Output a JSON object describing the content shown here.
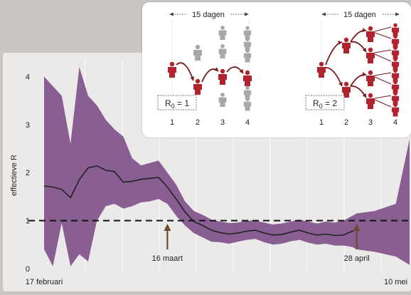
{
  "chart_data": {
    "type": "area",
    "ylabel": "effectieve R",
    "ylim": [
      0,
      4.2
    ],
    "yticks": [
      0,
      1,
      2,
      3,
      4
    ],
    "x_range": [
      "2020-02-17",
      "2020-05-10"
    ],
    "x_tick_labels": [
      {
        "date": "2020-02-17",
        "label": "17 februari"
      },
      {
        "date": "2020-05-10",
        "label": "10 mei"
      }
    ],
    "reference_line": {
      "y": 1,
      "style": "dashed"
    },
    "annotations": [
      {
        "date": "2020-03-16",
        "label": "16 maart"
      },
      {
        "date": "2020-04-28",
        "label": "28 april"
      }
    ],
    "series": [
      {
        "x": [
          "2020-02-17",
          "2020-02-19",
          "2020-02-21",
          "2020-02-23",
          "2020-02-25",
          "2020-02-27",
          "2020-02-29",
          "2020-03-02",
          "2020-03-04",
          "2020-03-06",
          "2020-03-08",
          "2020-03-10",
          "2020-03-12",
          "2020-03-14",
          "2020-03-16",
          "2020-03-18",
          "2020-03-20",
          "2020-03-22",
          "2020-03-24",
          "2020-03-26",
          "2020-03-28",
          "2020-03-30",
          "2020-04-01",
          "2020-04-03",
          "2020-04-05",
          "2020-04-07",
          "2020-04-09",
          "2020-04-11",
          "2020-04-13",
          "2020-04-15",
          "2020-04-17",
          "2020-04-19",
          "2020-04-21",
          "2020-04-23",
          "2020-04-25",
          "2020-04-27",
          "2020-04-28"
        ],
        "y": [
          1.72,
          1.7,
          1.65,
          1.48,
          1.85,
          2.1,
          2.14,
          2.05,
          2.02,
          1.8,
          1.82,
          1.86,
          1.88,
          1.9,
          1.7,
          1.45,
          1.18,
          0.98,
          0.9,
          0.8,
          0.75,
          0.72,
          0.74,
          0.78,
          0.8,
          0.74,
          0.7,
          0.71,
          0.76,
          0.8,
          0.74,
          0.7,
          0.72,
          0.69,
          0.7,
          0.78,
          0.83
        ],
        "lower": [
          0.4,
          0.05,
          0.95,
          0.05,
          0.3,
          0.15,
          1.0,
          1.3,
          1.35,
          1.25,
          1.3,
          1.38,
          1.4,
          1.45,
          1.35,
          1.1,
          0.9,
          0.74,
          0.65,
          0.56,
          0.55,
          0.52,
          0.56,
          0.6,
          0.62,
          0.55,
          0.5,
          0.52,
          0.57,
          0.6,
          0.54,
          0.5,
          0.52,
          0.48,
          0.48,
          0.45,
          0.4
        ],
        "upper": [
          4.0,
          3.8,
          3.6,
          2.6,
          4.2,
          3.6,
          3.4,
          3.1,
          2.9,
          2.75,
          2.3,
          2.15,
          2.2,
          2.25,
          2.0,
          1.75,
          1.4,
          1.2,
          1.12,
          1.02,
          0.98,
          0.95,
          0.96,
          1.0,
          1.0,
          0.96,
          0.92,
          0.94,
          0.98,
          1.02,
          0.98,
          0.94,
          0.98,
          0.96,
          1.0,
          1.1,
          1.15
        ]
      }
    ]
  },
  "inset": {
    "left": {
      "period": "15 dagen",
      "r0_label": "R",
      "r0_sub": "0",
      "r0_value": " = 1",
      "generations": [
        "1",
        "2",
        "3",
        "4"
      ]
    },
    "right": {
      "period": "15 dagen",
      "r0_label": "R",
      "r0_sub": "0",
      "r0_value": " = 2",
      "generations": [
        "1",
        "2",
        "3",
        "4"
      ]
    },
    "colors": {
      "infected": "#b3232e",
      "not_infected": "#a8a8a8",
      "arrow": "#7a1a1f"
    }
  }
}
